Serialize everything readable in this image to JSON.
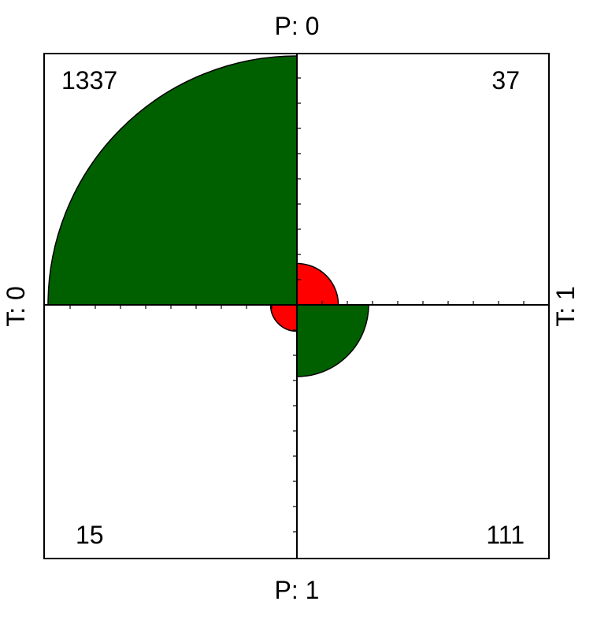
{
  "chart_data": {
    "type": "fourfold",
    "row_variable": "T",
    "col_variable": "P",
    "labels": {
      "top": "P: 0",
      "bottom": "P: 1",
      "left": "T: 0",
      "right": "T: 1"
    },
    "cells": [
      {
        "name": "T0-P0",
        "quadrant": "top-left",
        "T": "0",
        "P": "0",
        "count": 1337,
        "label": "1337",
        "color": "#006000"
      },
      {
        "name": "T1-P0",
        "quadrant": "top-right",
        "T": "1",
        "P": "0",
        "count": 37,
        "label": "37",
        "color": "#ff0000"
      },
      {
        "name": "T0-P1",
        "quadrant": "bottom-left",
        "T": "0",
        "P": "1",
        "count": 15,
        "label": "15",
        "color": "#ff0000"
      },
      {
        "name": "T1-P1",
        "quadrant": "bottom-right",
        "T": "1",
        "P": "1",
        "count": 111,
        "label": "111",
        "color": "#006000"
      }
    ],
    "scale": "area proportional to standardized count",
    "colors": {
      "agree": "#006000",
      "disagree": "#ff0000",
      "outline": "#000000"
    }
  }
}
